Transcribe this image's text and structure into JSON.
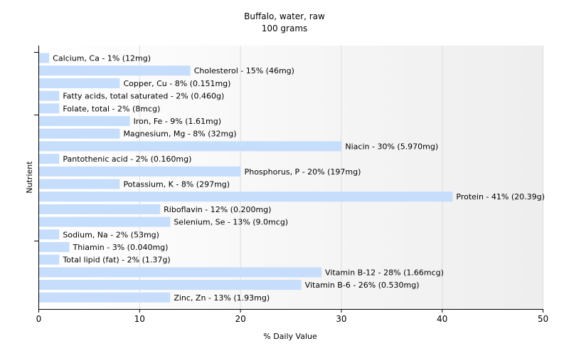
{
  "chart_data": {
    "type": "bar",
    "orientation": "horizontal",
    "title": "Buffalo, water, raw",
    "subtitle": "100 grams",
    "xlabel": "% Daily Value",
    "ylabel": "Nutrient",
    "xlim": [
      0,
      50
    ],
    "xticks": [
      "0",
      "10",
      "20",
      "30",
      "40",
      "50"
    ],
    "grid": true,
    "bar_color": "#c6defb",
    "categories": [
      "Calcium, Ca",
      "Cholesterol",
      "Copper, Cu",
      "Fatty acids, total saturated",
      "Folate, total",
      "Iron, Fe",
      "Magnesium, Mg",
      "Niacin",
      "Pantothenic acid",
      "Phosphorus, P",
      "Potassium, K",
      "Protein",
      "Riboflavin",
      "Selenium, Se",
      "Sodium, Na",
      "Thiamin",
      "Total lipid (fat)",
      "Vitamin B-12",
      "Vitamin B-6",
      "Zinc, Zn"
    ],
    "values": [
      1,
      15,
      8,
      2,
      2,
      9,
      8,
      30,
      2,
      20,
      8,
      41,
      12,
      13,
      2,
      3,
      2,
      28,
      26,
      13
    ],
    "labels": [
      "Calcium, Ca - 1% (12mg)",
      "Cholesterol - 15% (46mg)",
      "Copper, Cu - 8% (0.151mg)",
      "Fatty acids, total saturated - 2% (0.460g)",
      "Folate, total - 2% (8mcg)",
      "Iron, Fe - 9% (1.61mg)",
      "Magnesium, Mg - 8% (32mg)",
      "Niacin - 30% (5.970mg)",
      "Pantothenic acid - 2% (0.160mg)",
      "Phosphorus, P - 20% (197mg)",
      "Potassium, K - 8% (297mg)",
      "Protein - 41% (20.39g)",
      "Riboflavin - 12% (0.200mg)",
      "Selenium, Se - 13% (9.0mcg)",
      "Sodium, Na - 2% (53mg)",
      "Thiamin - 3% (0.040mg)",
      "Total lipid (fat) - 2% (1.37g)",
      "Vitamin B-12 - 28% (1.66mcg)",
      "Vitamin B-6 - 26% (0.530mg)",
      "Zinc, Zn - 13% (1.93mg)"
    ]
  }
}
